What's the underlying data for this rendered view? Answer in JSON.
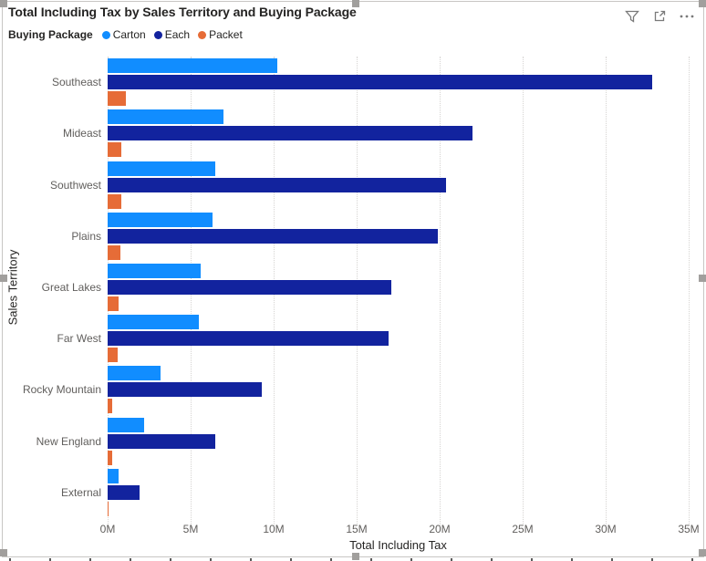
{
  "visual": {
    "title": "Total Including Tax by Sales Territory and Buying Package",
    "toolbar": {
      "filter_tooltip": "Filters",
      "focus_tooltip": "Focus mode",
      "more_tooltip": "More options"
    }
  },
  "legend": {
    "title": "Buying Package",
    "items": [
      {
        "label": "Carton",
        "color": "#118DFF"
      },
      {
        "label": "Each",
        "color": "#12239E"
      },
      {
        "label": "Packet",
        "color": "#E66C37"
      }
    ]
  },
  "chart_data": {
    "type": "bar",
    "orientation": "horizontal",
    "title": "Total Including Tax by Sales Territory and Buying Package",
    "xlabel": "Total Including Tax",
    "ylabel": "Sales Territory",
    "xlim": [
      0,
      35000000
    ],
    "grid": "vertical-dotted",
    "legend_position": "top",
    "x_ticks": [
      {
        "value": 0,
        "label": "0M"
      },
      {
        "value": 5000000,
        "label": "5M"
      },
      {
        "value": 10000000,
        "label": "10M"
      },
      {
        "value": 15000000,
        "label": "15M"
      },
      {
        "value": 20000000,
        "label": "20M"
      },
      {
        "value": 25000000,
        "label": "25M"
      },
      {
        "value": 30000000,
        "label": "30M"
      },
      {
        "value": 35000000,
        "label": "35M"
      }
    ],
    "categories": [
      "Southeast",
      "Mideast",
      "Southwest",
      "Plains",
      "Great Lakes",
      "Far West",
      "Rocky Mountain",
      "New England",
      "External"
    ],
    "series": [
      {
        "name": "Carton",
        "color": "#118DFF",
        "values": [
          10200000,
          7000000,
          6500000,
          6300000,
          5600000,
          5500000,
          3200000,
          2200000,
          650000
        ]
      },
      {
        "name": "Each",
        "color": "#12239E",
        "values": [
          32800000,
          22000000,
          20400000,
          19900000,
          17100000,
          16900000,
          9300000,
          6500000,
          1900000
        ]
      },
      {
        "name": "Packet",
        "color": "#E66C37",
        "values": [
          1100000,
          800000,
          800000,
          750000,
          650000,
          600000,
          300000,
          250000,
          50000
        ]
      }
    ]
  }
}
